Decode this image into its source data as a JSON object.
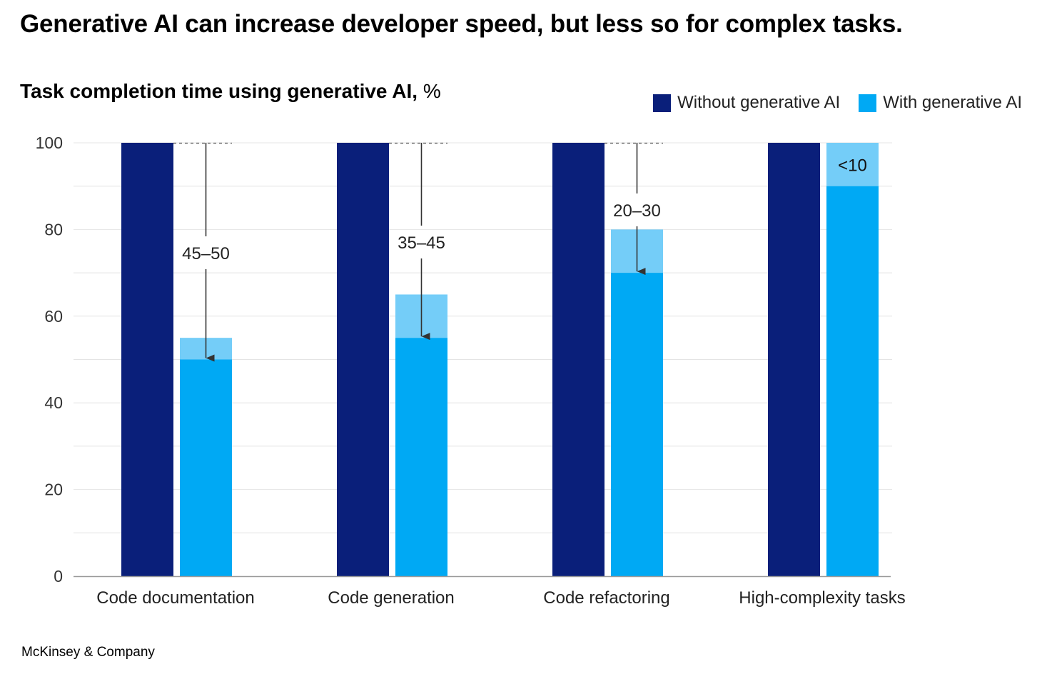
{
  "headline": "Generative AI can increase developer speed, but less so for complex tasks.",
  "subtitle": {
    "text": "Task completion time using generative AI,",
    "unit": "%"
  },
  "source": "McKinsey & Company",
  "colors": {
    "without": "#0a1f7a",
    "with": "#00a9f4",
    "range": "#74cdf8",
    "gridline": "#e4e4e4",
    "axis": "#9a9a9a",
    "arrow": "#333333"
  },
  "chart_data": {
    "type": "bar",
    "ylim": [
      0,
      100
    ],
    "yticks": [
      0,
      20,
      40,
      60,
      80,
      100
    ],
    "grid": true,
    "legend_position": "top-right",
    "categories": [
      "Code documentation",
      "Code generation",
      "Code refactoring",
      "High-complexity tasks"
    ],
    "series": [
      {
        "name": "Without generative AI",
        "values": [
          100,
          100,
          100,
          100
        ]
      },
      {
        "name": "With generative AI",
        "values": [
          50,
          55,
          70,
          90
        ],
        "range_top": [
          55,
          65,
          80,
          100
        ]
      }
    ],
    "annotations": [
      "45–50",
      "35–45",
      "20–30",
      "<10"
    ]
  }
}
